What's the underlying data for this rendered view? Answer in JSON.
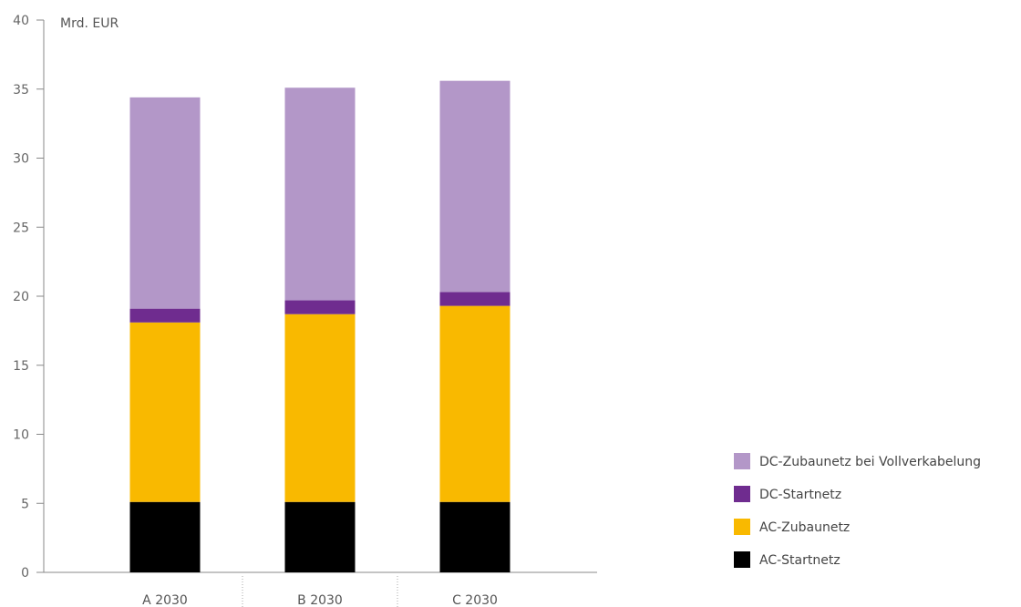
{
  "chart_data": {
    "type": "bar",
    "stacked": true,
    "unit_label": "Mrd. EUR",
    "categories": [
      "A 2030",
      "B 2030",
      "C 2030"
    ],
    "ylim": [
      0,
      40
    ],
    "yticks": [
      0,
      5,
      10,
      15,
      20,
      25,
      30,
      35,
      40
    ],
    "grid": false,
    "legend_position": "right",
    "series": [
      {
        "name": "AC-Startnetz",
        "color": "#000000",
        "values": [
          5.1,
          5.1,
          5.1
        ]
      },
      {
        "name": "AC-Zubaunetz",
        "color": "#f9b900",
        "values": [
          13.0,
          13.6,
          14.2
        ]
      },
      {
        "name": "DC-Startnetz",
        "color": "#6f2c8f",
        "values": [
          1.0,
          1.0,
          1.0
        ]
      },
      {
        "name": "DC-Zubaunetz bei Vollverkabelung",
        "color": "#b397c8",
        "values": [
          15.3,
          15.4,
          15.3
        ]
      }
    ]
  }
}
